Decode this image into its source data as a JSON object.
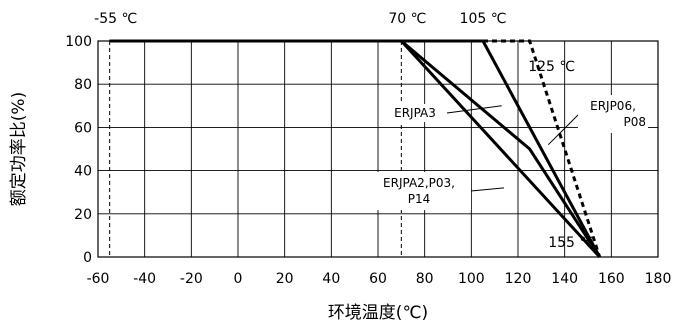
{
  "chart_data": {
    "type": "line",
    "title": "",
    "xlabel": "环境温度(℃)",
    "ylabel": "额定功率比(%)",
    "xlim": [
      -60,
      180
    ],
    "ylim": [
      0,
      100
    ],
    "x_ticks": [
      "-60",
      "-40",
      "-20",
      "0",
      "20",
      "40",
      "60",
      "80",
      "100",
      "120",
      "140",
      "160",
      "180"
    ],
    "y_ticks": [
      "0",
      "20",
      "40",
      "60",
      "80",
      "100"
    ],
    "grid": true,
    "series": [
      {
        "name": "ERJPA3",
        "style": "solid",
        "x": [
          -55,
          70,
          155
        ],
        "y": [
          100,
          100,
          0
        ]
      },
      {
        "name": "ERJPA2,P03,P14",
        "style": "solid",
        "x": [
          -55,
          70,
          125,
          155
        ],
        "y": [
          100,
          100,
          50,
          0
        ]
      },
      {
        "name": "ERJP06,P08",
        "style": "solid",
        "x": [
          -55,
          105,
          155
        ],
        "y": [
          100,
          100,
          0
        ]
      },
      {
        "name": "",
        "style": "dotted",
        "x": [
          105,
          125,
          155
        ],
        "y": [
          100,
          100,
          0
        ]
      }
    ],
    "vlines": [
      {
        "x": -55,
        "label": "-55 ℃"
      },
      {
        "x": 70,
        "label": "70 ℃"
      }
    ],
    "annotations": [
      {
        "text": "105 ℃",
        "x": 105,
        "y": 100
      },
      {
        "text": "125 ℃",
        "x": 125,
        "y": 100
      },
      {
        "text": "155 ℃",
        "x": 155,
        "y": 0
      }
    ],
    "callouts": [
      {
        "lines": [
          "ERJPA3"
        ],
        "target_x": 113,
        "target_y": 70
      },
      {
        "lines": [
          "ERJP06,",
          "P08"
        ],
        "target_x": 133,
        "target_y": 52
      },
      {
        "lines": [
          "ERJPA2,P03,",
          "P14"
        ],
        "target_x": 114,
        "target_y": 32
      }
    ],
    "colors": {
      "line": "#000000",
      "grid": "#000000"
    }
  }
}
